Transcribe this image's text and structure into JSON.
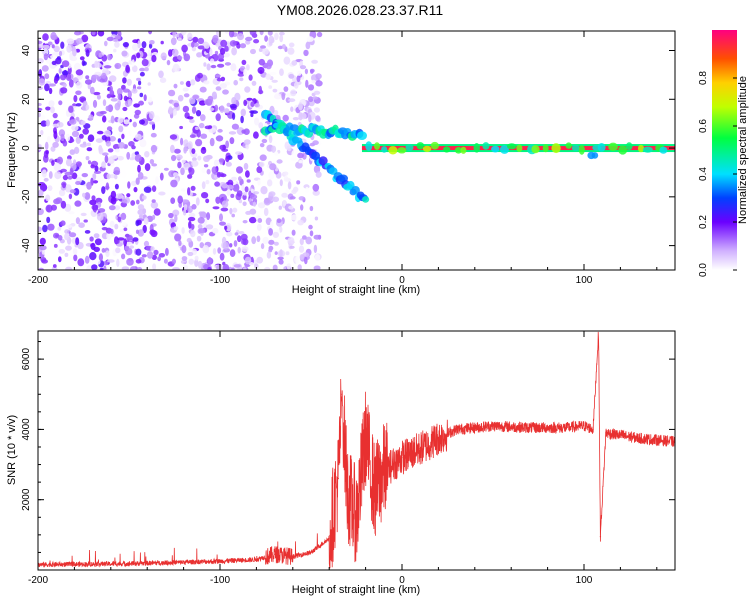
{
  "title": "YM08.2026.028.23.37.R11",
  "chart_data": [
    {
      "type": "heatmap",
      "xlabel": "Height of straight line (km)",
      "ylabel": "Frequency (Hz)",
      "xlim": [
        -200,
        150
      ],
      "ylim": [
        -50,
        48
      ],
      "xticks": [
        -200,
        -100,
        0,
        100
      ],
      "yticks": [
        -40,
        -20,
        0,
        20,
        40
      ],
      "colorbar": {
        "label": "Normalized spectral amplitude",
        "range": [
          0,
          1
        ],
        "ticks": [
          "0.0",
          "0.2",
          "0.4",
          "0.6",
          "0.8"
        ]
      },
      "features": [
        {
          "name": "broadband noise",
          "x_range": [
            -200,
            -45
          ],
          "freq_range": [
            -50,
            48
          ],
          "amplitude": 0.1
        },
        {
          "name": "descending branch",
          "x_range": [
            -75,
            -20
          ],
          "freq_start": 14,
          "freq_end": -22,
          "amplitude": 0.25
        },
        {
          "name": "converging branch",
          "x_range": [
            -75,
            -22
          ],
          "freq_start": 8,
          "freq_end": 6,
          "amplitude": 0.3
        },
        {
          "name": "zero-frequency line",
          "x_range": [
            -22,
            150
          ],
          "freq": 0,
          "amplitude": 0.95
        }
      ]
    },
    {
      "type": "line",
      "xlabel": "Height of straight line (km)",
      "ylabel": "SNR (10 * v/v)",
      "xlim": [
        -200,
        150
      ],
      "ylim": [
        0,
        6800
      ],
      "xticks": [
        -200,
        -100,
        0,
        100
      ],
      "yticks": [
        2000,
        4000,
        6000
      ],
      "color": "#e83030",
      "series": [
        {
          "name": "SNR",
          "points": [
            [
              -200,
              150
            ],
            [
              -150,
              180
            ],
            [
              -100,
              250
            ],
            [
              -80,
              300
            ],
            [
              -70,
              450
            ],
            [
              -60,
              380
            ],
            [
              -50,
              500
            ],
            [
              -40,
              900
            ],
            [
              -35,
              2600
            ],
            [
              -33,
              5000
            ],
            [
              -30,
              2200
            ],
            [
              -25,
              1500
            ],
            [
              -20,
              3800
            ],
            [
              -15,
              2200
            ],
            [
              -10,
              2800
            ],
            [
              -5,
              3000
            ],
            [
              0,
              3200
            ],
            [
              10,
              3450
            ],
            [
              20,
              3750
            ],
            [
              30,
              4000
            ],
            [
              50,
              4100
            ],
            [
              70,
              4050
            ],
            [
              90,
              4050
            ],
            [
              100,
              4100
            ],
            [
              105,
              4000
            ],
            [
              108,
              6800
            ],
            [
              109,
              950
            ],
            [
              112,
              3900
            ],
            [
              130,
              3750
            ],
            [
              150,
              3650
            ]
          ]
        }
      ]
    }
  ]
}
